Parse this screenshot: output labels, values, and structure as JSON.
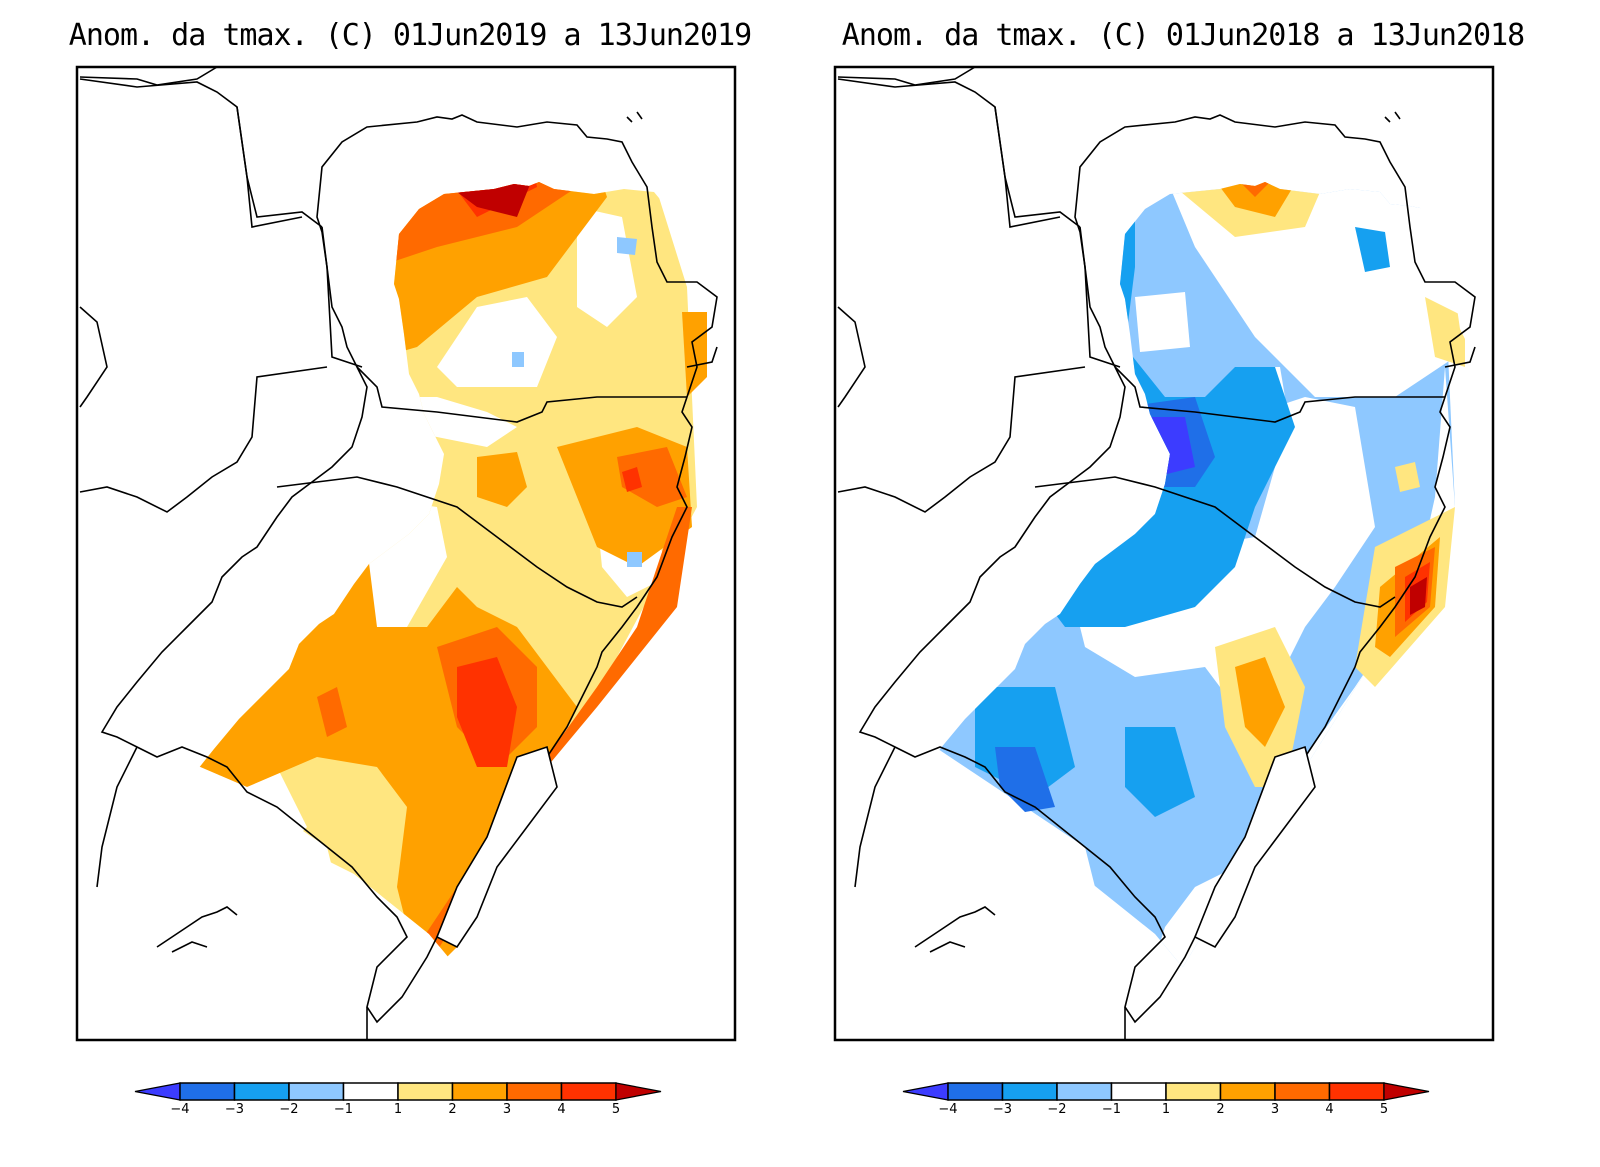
{
  "figure": {
    "variable": "Anom. da tmax.",
    "units": "C"
  },
  "chart_data": [
    {
      "type": "heatmap",
      "subtype": "filled-contour-map",
      "title": "Anom. da tmax. (C) 01Jun2019 a 13Jun2019",
      "region": "Southern Brazil (PR, SC, RS)",
      "colorbar": {
        "levels": [
          -4,
          -3,
          -2,
          -1,
          1,
          2,
          3,
          4,
          5
        ],
        "tick_labels": [
          "-4",
          "-3",
          "-2",
          "-1",
          "1",
          "2",
          "3",
          "4",
          "5"
        ],
        "colors": [
          "#3c3cff",
          "#1f6fe8",
          "#16a0f0",
          "#8ec8ff",
          "#ffffff",
          "#ffe680",
          "#ffa100",
          "#ff6a00",
          "#ff3200",
          "#c00000"
        ],
        "extend": "both",
        "placement": "bottom"
      },
      "summary": {
        "dominant_range": [
          1,
          4
        ],
        "max_anomaly_region": "northern Paraná (>5)",
        "min_anomaly_region": "small spots in Paraná and Santa Catarina (-2 to -1)"
      }
    },
    {
      "type": "heatmap",
      "subtype": "filled-contour-map",
      "title": "Anom. da tmax. (C) 01Jun2018 a 13Jun2018",
      "region": "Southern Brazil (PR, SC, RS)",
      "colorbar": {
        "levels": [
          -4,
          -3,
          -2,
          -1,
          1,
          2,
          3,
          4,
          5
        ],
        "tick_labels": [
          "-4",
          "-3",
          "-2",
          "-1",
          "1",
          "2",
          "3",
          "4",
          "5"
        ],
        "colors": [
          "#3c3cff",
          "#1f6fe8",
          "#16a0f0",
          "#8ec8ff",
          "#ffffff",
          "#ffe680",
          "#ffa100",
          "#ff6a00",
          "#ff3200",
          "#c00000"
        ],
        "extend": "both",
        "placement": "bottom"
      },
      "summary": {
        "dominant_range": [
          -3,
          1
        ],
        "max_anomaly_region": "northern Paraná and Santa Catarina coast (>5)",
        "min_anomaly_region": "western Santa Catarina / southwest Rio Grande do Sul (-4 to -3)"
      }
    }
  ]
}
